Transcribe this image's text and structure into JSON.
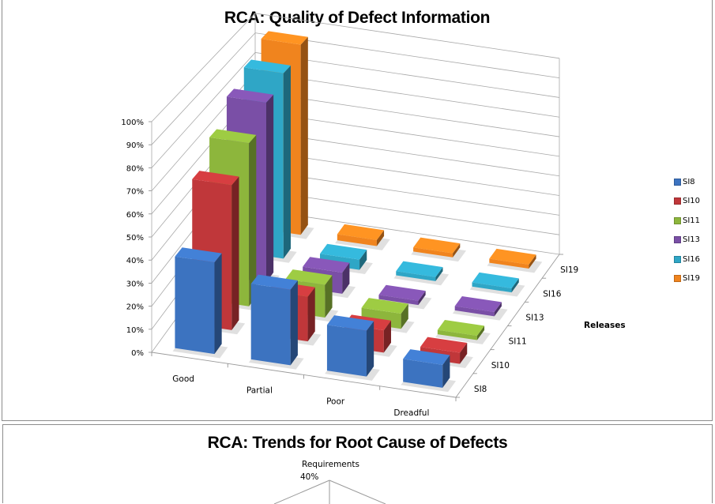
{
  "chart_data": [
    {
      "type": "bar",
      "subtype": "3d-column",
      "title": "RCA: Quality of Defect Information",
      "xlabel": "",
      "ylabel": "",
      "zlabel": "Releases",
      "categories": [
        "Good",
        "Partial",
        "Poor",
        "Dreadful"
      ],
      "yticks": [
        "0%",
        "10%",
        "20%",
        "30%",
        "40%",
        "50%",
        "60%",
        "70%",
        "80%",
        "90%",
        "100%"
      ],
      "ylim": [
        0,
        100
      ],
      "depth_labels": [
        "SI8",
        "SI10",
        "SI11",
        "SI13",
        "SI16",
        "SI19"
      ],
      "legend_position": "right",
      "grid": true,
      "series": [
        {
          "name": "SI8",
          "color": "#3C73C0",
          "values": [
            40,
            33,
            20,
            10
          ]
        },
        {
          "name": "SI10",
          "color": "#C0373A",
          "values": [
            65,
            20,
            10,
            5
          ]
        },
        {
          "name": "SI11",
          "color": "#8DB63C",
          "values": [
            75,
            15,
            7,
            2
          ]
        },
        {
          "name": "SI13",
          "color": "#7A4FA6",
          "values": [
            85,
            10,
            2,
            2
          ]
        },
        {
          "name": "SI16",
          "color": "#2FA6C6",
          "values": [
            90,
            5,
            2,
            2
          ]
        },
        {
          "name": "SI19",
          "color": "#F0841E",
          "values": [
            95,
            3,
            2,
            2
          ]
        }
      ]
    },
    {
      "type": "radar",
      "title": "RCA: Trends for Root Cause of Defects",
      "categories": [
        "Requirements"
      ],
      "ticks": [
        "40%"
      ],
      "partial": true
    }
  ],
  "chart1": {
    "title": "RCA: Quality of Defect Information",
    "releases_label": "Releases",
    "legend": [
      {
        "label": "SI8",
        "color": "#3C73C0"
      },
      {
        "label": "SI10",
        "color": "#C0373A"
      },
      {
        "label": "SI11",
        "color": "#8DB63C"
      },
      {
        "label": "SI13",
        "color": "#7A4FA6"
      },
      {
        "label": "SI16",
        "color": "#2FA6C6"
      },
      {
        "label": "SI19",
        "color": "#F0841E"
      }
    ]
  },
  "chart2": {
    "title": "RCA: Trends for Root Cause of Defects",
    "axis_label": "Requirements",
    "tick_label": "40%"
  }
}
